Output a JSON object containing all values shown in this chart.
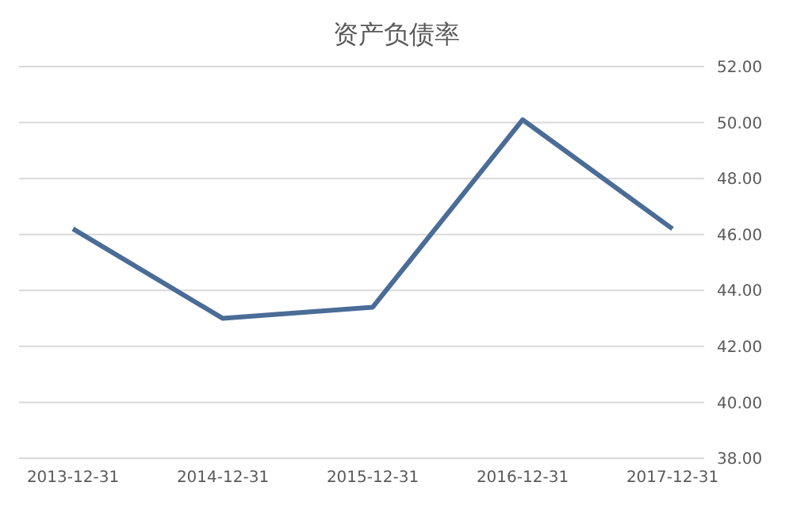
{
  "chart_data": {
    "type": "line",
    "title": "资产负债率",
    "categories": [
      "2013-12-31",
      "2014-12-31",
      "2015-12-31",
      "2016-12-31",
      "2017-12-31"
    ],
    "series": [
      {
        "color": "#4a6c96",
        "values": [
          46.2,
          43.0,
          43.4,
          50.1,
          46.2
        ]
      }
    ],
    "ylim": [
      38,
      52
    ],
    "yticks": [
      {
        "value": 38,
        "label": "38.00"
      },
      {
        "value": 40,
        "label": "40.00"
      },
      {
        "value": 42,
        "label": "42.00"
      },
      {
        "value": 44,
        "label": "44.00"
      },
      {
        "value": 46,
        "label": "46.00"
      },
      {
        "value": 48,
        "label": "48.00"
      },
      {
        "value": 50,
        "label": "50.00"
      },
      {
        "value": 52,
        "label": "52.00"
      }
    ],
    "grid": "y",
    "marker": "none",
    "line_style": "solid"
  }
}
